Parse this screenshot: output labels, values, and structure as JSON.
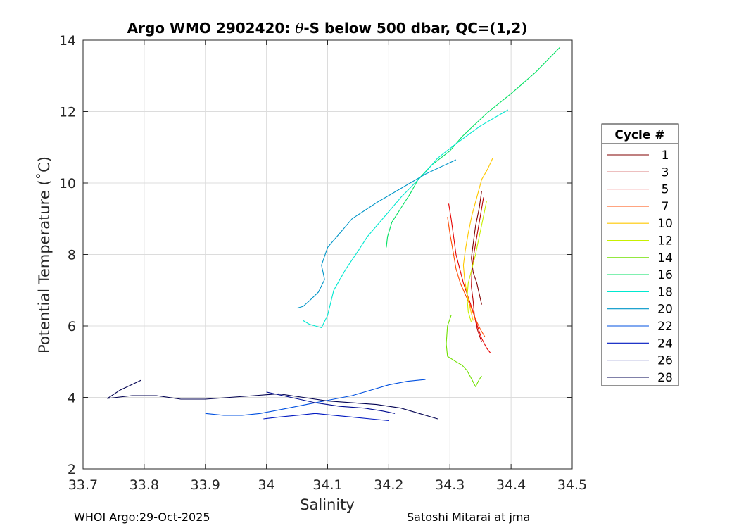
{
  "chart_data": {
    "type": "line",
    "title_prefix": "Argo WMO 2902420: ",
    "title_theta": "θ",
    "title_suffix": "-S below 500 dbar,  QC=(1,2)",
    "xlabel": "Salinity",
    "ylabel": "Potential Temperature (˚C)",
    "xlim": [
      33.7,
      34.5
    ],
    "ylim": [
      2,
      14
    ],
    "xticks": [
      "33.7",
      "33.8",
      "33.9",
      "34",
      "34.1",
      "34.2",
      "34.3",
      "34.4",
      "34.5"
    ],
    "yticks": [
      "2",
      "4",
      "6",
      "8",
      "10",
      "12",
      "14"
    ],
    "grid": true,
    "legend_title": "Cycle #",
    "legend_position": "right",
    "series": [
      {
        "name": "1",
        "color": "#800000",
        "points": [
          [
            34.352,
            9.78
          ],
          [
            34.348,
            9.3
          ],
          [
            34.342,
            8.8
          ],
          [
            34.338,
            8.3
          ],
          [
            34.335,
            7.9
          ],
          [
            34.338,
            7.5
          ],
          [
            34.344,
            7.2
          ],
          [
            34.348,
            6.9
          ],
          [
            34.352,
            6.6
          ]
        ]
      },
      {
        "name": "3",
        "color": "#b80000",
        "points": [
          [
            34.355,
            9.6
          ],
          [
            34.35,
            9.1
          ],
          [
            34.345,
            8.6
          ],
          [
            34.34,
            8.1
          ],
          [
            34.336,
            7.6
          ],
          [
            34.335,
            7.1
          ],
          [
            34.338,
            6.7
          ],
          [
            34.34,
            6.3
          ],
          [
            34.345,
            5.9
          ],
          [
            34.352,
            5.55
          ]
        ]
      },
      {
        "name": "5",
        "color": "#e60000",
        "points": [
          [
            34.298,
            9.42
          ],
          [
            34.302,
            9.0
          ],
          [
            34.306,
            8.5
          ],
          [
            34.31,
            8.0
          ],
          [
            34.316,
            7.6
          ],
          [
            34.322,
            7.2
          ],
          [
            34.33,
            6.8
          ],
          [
            34.338,
            6.4
          ],
          [
            34.345,
            6.0
          ],
          [
            34.352,
            5.65
          ],
          [
            34.36,
            5.38
          ],
          [
            34.366,
            5.25
          ]
        ]
      },
      {
        "name": "7",
        "color": "#ff4a00",
        "points": [
          [
            34.296,
            9.05
          ],
          [
            34.3,
            8.6
          ],
          [
            34.305,
            8.1
          ],
          [
            34.31,
            7.6
          ],
          [
            34.317,
            7.2
          ],
          [
            34.326,
            6.85
          ],
          [
            34.335,
            6.5
          ],
          [
            34.343,
            6.15
          ],
          [
            34.35,
            5.9
          ],
          [
            34.357,
            5.7
          ]
        ]
      },
      {
        "name": "10",
        "color": "#ffc800",
        "points": [
          [
            34.37,
            10.7
          ],
          [
            34.362,
            10.4
          ],
          [
            34.352,
            10.1
          ],
          [
            34.344,
            9.6
          ],
          [
            34.336,
            9.1
          ],
          [
            34.33,
            8.6
          ],
          [
            34.325,
            8.1
          ],
          [
            34.322,
            7.7
          ],
          [
            34.324,
            7.3
          ],
          [
            34.328,
            6.9
          ],
          [
            34.333,
            6.5
          ],
          [
            34.338,
            6.15
          ]
        ]
      },
      {
        "name": "12",
        "color": "#c8f000",
        "points": [
          [
            34.36,
            9.5
          ],
          [
            34.354,
            9.0
          ],
          [
            34.348,
            8.5
          ],
          [
            34.342,
            8.0
          ],
          [
            34.336,
            7.6
          ],
          [
            34.33,
            7.2
          ],
          [
            34.328,
            6.8
          ],
          [
            34.33,
            6.4
          ],
          [
            34.335,
            6.1
          ]
        ]
      },
      {
        "name": "14",
        "color": "#70e000",
        "points": [
          [
            34.302,
            6.3
          ],
          [
            34.296,
            6.0
          ],
          [
            34.294,
            5.5
          ],
          [
            34.296,
            5.15
          ],
          [
            34.31,
            5.0
          ],
          [
            34.32,
            4.9
          ],
          [
            34.328,
            4.75
          ],
          [
            34.336,
            4.5
          ],
          [
            34.342,
            4.3
          ],
          [
            34.348,
            4.5
          ],
          [
            34.352,
            4.6
          ]
        ]
      },
      {
        "name": "16",
        "color": "#00e060",
        "points": [
          [
            34.48,
            13.8
          ],
          [
            34.44,
            13.1
          ],
          [
            34.4,
            12.5
          ],
          [
            34.36,
            11.95
          ],
          [
            34.32,
            11.3
          ],
          [
            34.3,
            10.9
          ],
          [
            34.27,
            10.5
          ],
          [
            34.248,
            10.1
          ],
          [
            34.235,
            9.7
          ],
          [
            34.22,
            9.3
          ],
          [
            34.205,
            8.9
          ],
          [
            34.198,
            8.5
          ],
          [
            34.196,
            8.2
          ]
        ]
      },
      {
        "name": "18",
        "color": "#00e8d0",
        "points": [
          [
            34.395,
            12.05
          ],
          [
            34.35,
            11.6
          ],
          [
            34.31,
            11.1
          ],
          [
            34.28,
            10.7
          ],
          [
            34.26,
            10.3
          ],
          [
            34.24,
            9.95
          ],
          [
            34.22,
            9.6
          ],
          [
            34.2,
            9.2
          ],
          [
            34.18,
            8.8
          ],
          [
            34.165,
            8.5
          ],
          [
            34.15,
            8.1
          ],
          [
            34.13,
            7.6
          ],
          [
            34.11,
            7.0
          ],
          [
            34.1,
            6.3
          ],
          [
            34.09,
            5.95
          ],
          [
            34.07,
            6.05
          ],
          [
            34.06,
            6.15
          ]
        ]
      },
      {
        "name": "20",
        "color": "#0096c8",
        "points": [
          [
            34.31,
            10.65
          ],
          [
            34.26,
            10.25
          ],
          [
            34.22,
            9.85
          ],
          [
            34.18,
            9.45
          ],
          [
            34.14,
            9.0
          ],
          [
            34.12,
            8.6
          ],
          [
            34.1,
            8.2
          ],
          [
            34.09,
            7.7
          ],
          [
            34.095,
            7.3
          ],
          [
            34.085,
            6.95
          ],
          [
            34.07,
            6.7
          ],
          [
            34.06,
            6.55
          ],
          [
            34.05,
            6.5
          ]
        ]
      },
      {
        "name": "22",
        "color": "#0050e0",
        "points": [
          [
            34.26,
            4.5
          ],
          [
            34.23,
            4.45
          ],
          [
            34.2,
            4.35
          ],
          [
            34.17,
            4.2
          ],
          [
            34.14,
            4.05
          ],
          [
            34.11,
            3.95
          ],
          [
            34.08,
            3.85
          ],
          [
            34.05,
            3.75
          ],
          [
            34.02,
            3.65
          ],
          [
            33.99,
            3.55
          ],
          [
            33.96,
            3.5
          ],
          [
            33.93,
            3.5
          ],
          [
            33.9,
            3.55
          ]
        ]
      },
      {
        "name": "24",
        "color": "#0018c0",
        "points": [
          [
            34.2,
            3.35
          ],
          [
            34.17,
            3.4
          ],
          [
            34.14,
            3.45
          ],
          [
            34.11,
            3.5
          ],
          [
            34.08,
            3.55
          ],
          [
            34.05,
            3.5
          ],
          [
            34.02,
            3.45
          ],
          [
            33.995,
            3.4
          ]
        ]
      },
      {
        "name": "26",
        "color": "#000c90",
        "points": [
          [
            34.0,
            4.15
          ],
          [
            34.04,
            4.0
          ],
          [
            34.08,
            3.85
          ],
          [
            34.12,
            3.75
          ],
          [
            34.16,
            3.7
          ],
          [
            34.19,
            3.62
          ],
          [
            34.21,
            3.55
          ]
        ]
      },
      {
        "name": "28",
        "color": "#000050",
        "points": [
          [
            33.795,
            4.48
          ],
          [
            33.76,
            4.2
          ],
          [
            33.74,
            3.97
          ],
          [
            33.78,
            4.05
          ],
          [
            33.82,
            4.05
          ],
          [
            33.86,
            3.95
          ],
          [
            33.9,
            3.95
          ],
          [
            33.94,
            4.0
          ],
          [
            33.98,
            4.05
          ],
          [
            34.02,
            4.1
          ],
          [
            34.06,
            4.0
          ],
          [
            34.1,
            3.9
          ],
          [
            34.14,
            3.85
          ],
          [
            34.18,
            3.8
          ],
          [
            34.22,
            3.7
          ],
          [
            34.25,
            3.55
          ],
          [
            34.28,
            3.4
          ]
        ]
      }
    ]
  },
  "footer": {
    "left": "WHOI Argo:29-Oct-2025",
    "right": "Satoshi Mitarai at jma"
  }
}
